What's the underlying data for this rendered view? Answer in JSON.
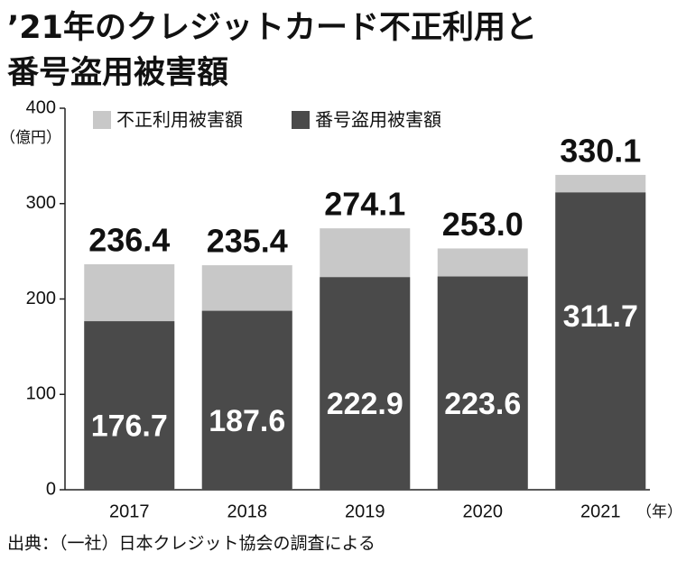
{
  "chart_data": {
    "type": "bar",
    "barmode": "overlay",
    "title_lines": [
      "’21年のクレジットカード不正利用と",
      "番号盗用被害額"
    ],
    "y_unit": "（億円）",
    "x_unit": "（年）",
    "source": "出典：（一社）日本クレジット協会の調査による",
    "categories": [
      "2017",
      "2018",
      "2019",
      "2020",
      "2021"
    ],
    "series": [
      {
        "name": "不正利用被害額",
        "color": "#c8c8c8",
        "values": [
          236.4,
          235.4,
          274.1,
          253.0,
          330.1
        ],
        "value_labels": [
          "236.4",
          "235.4",
          "274.1",
          "253.0",
          "330.1"
        ]
      },
      {
        "name": "番号盗用被害額",
        "color": "#4a4a4a",
        "values": [
          176.7,
          187.6,
          222.9,
          223.6,
          311.7
        ],
        "value_labels": [
          "176.7",
          "187.6",
          "222.9",
          "223.6",
          "311.7"
        ]
      }
    ],
    "ylim": [
      0,
      400
    ],
    "yticks": [
      0,
      100,
      200,
      300,
      400
    ],
    "grid": false
  }
}
